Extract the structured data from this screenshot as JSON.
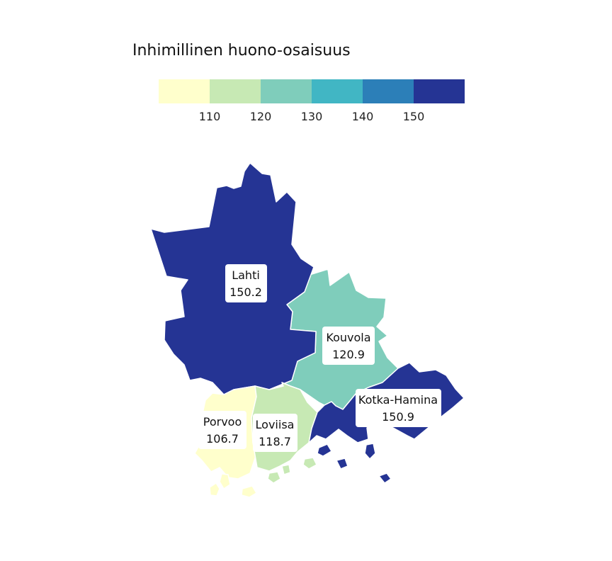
{
  "legend": {
    "title": "Inhimillinen huono-osaisuus",
    "bins": [
      {
        "color": "#ffffcc"
      },
      {
        "color": "#c7e9b4"
      },
      {
        "color": "#7fcdbb"
      },
      {
        "color": "#41b6c4"
      },
      {
        "color": "#2c7fb8"
      },
      {
        "color": "#253494"
      }
    ],
    "ticks": [
      "110",
      "120",
      "130",
      "140",
      "150"
    ]
  },
  "regions": [
    {
      "id": "lahti",
      "name": "Lahti",
      "value": "150.2",
      "color": "#253494"
    },
    {
      "id": "kouvola",
      "name": "Kouvola",
      "value": "120.9",
      "color": "#7fcdbb"
    },
    {
      "id": "kotka-hamina",
      "name": "Kotka-Hamina",
      "value": "150.9",
      "color": "#253494"
    },
    {
      "id": "porvoo",
      "name": "Porvoo",
      "value": "106.7",
      "color": "#ffffcc"
    },
    {
      "id": "loviisa",
      "name": "Loviisa",
      "value": "118.7",
      "color": "#c7e9b4"
    }
  ]
}
